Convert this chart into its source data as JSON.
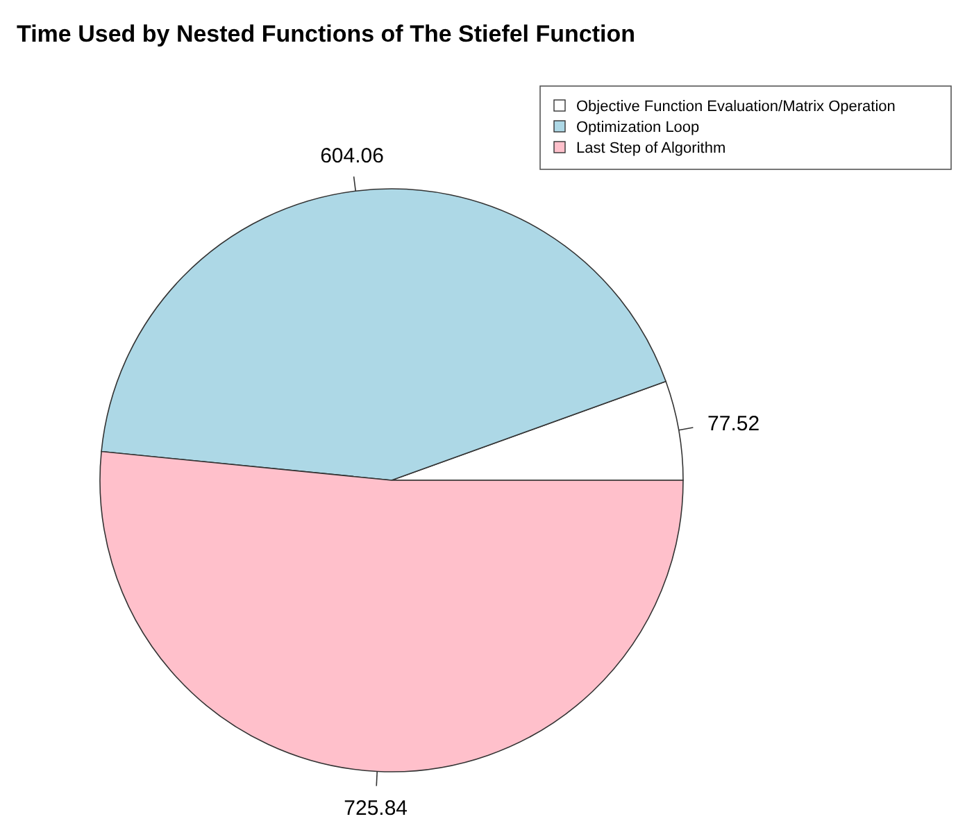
{
  "chart_data": {
    "type": "pie",
    "title": "Time Used by Nested Functions of The Stiefel Function",
    "categories": [
      "Objective Function Evaluation/Matrix Operation",
      "Optimization Loop",
      "Last Step of Algorithm"
    ],
    "values": [
      77.52,
      604.06,
      725.84
    ],
    "colors": [
      "#ffffff",
      "#add8e6",
      "#ffc0cb"
    ],
    "data_labels": true,
    "legend": "top right"
  }
}
